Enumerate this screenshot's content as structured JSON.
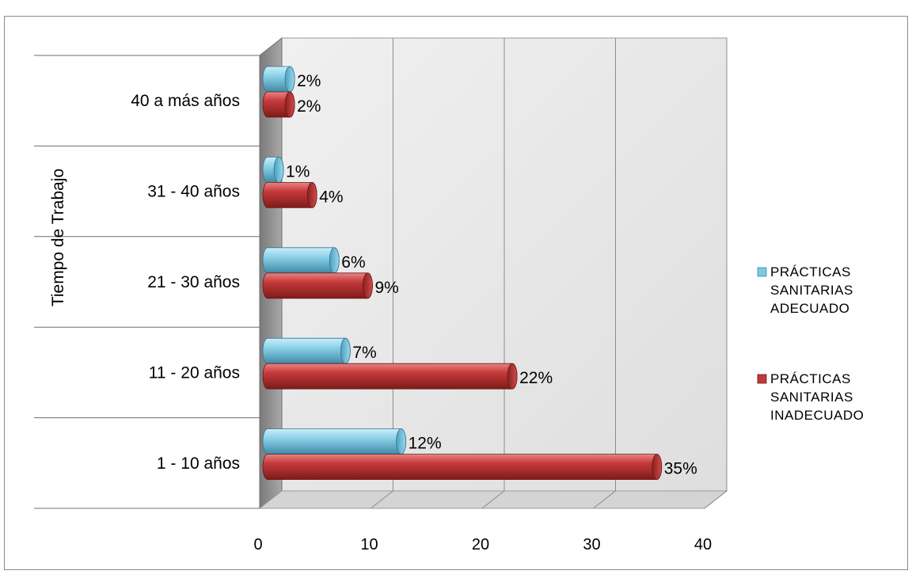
{
  "chart_data": {
    "type": "bar",
    "orientation": "horizontal",
    "style": "3d-cylinder",
    "ylabel": "Tiempo de Trabajo",
    "xlabel": "",
    "xlim": [
      0,
      40
    ],
    "xticks": [
      0,
      10,
      20,
      30,
      40
    ],
    "grid": true,
    "legend_position": "right",
    "categories": [
      "40 a más años",
      "31 - 40 años",
      "21 - 30 años",
      "11 - 20 años",
      "1 - 10 años"
    ],
    "series": [
      {
        "name": "PRÁCTICAS SANITARIAS ADECUADO",
        "legend_lines": [
          "PRÁCTICAS",
          "SANITARIAS",
          "ADECUADO"
        ],
        "color": "#7ec8e0",
        "values": [
          2,
          1,
          6,
          7,
          12
        ],
        "labels": [
          "2%",
          "1%",
          "6%",
          "7%",
          "12%"
        ]
      },
      {
        "name": "PRÁCTICAS SANITARIAS INADECUADO",
        "legend_lines": [
          "PRÁCTICAS",
          "SANITARIAS",
          "INADECUADO"
        ],
        "color": "#c0393a",
        "values": [
          2,
          4,
          9,
          22,
          35
        ],
        "labels": [
          "2%",
          "4%",
          "9%",
          "22%",
          "35%"
        ]
      }
    ]
  }
}
